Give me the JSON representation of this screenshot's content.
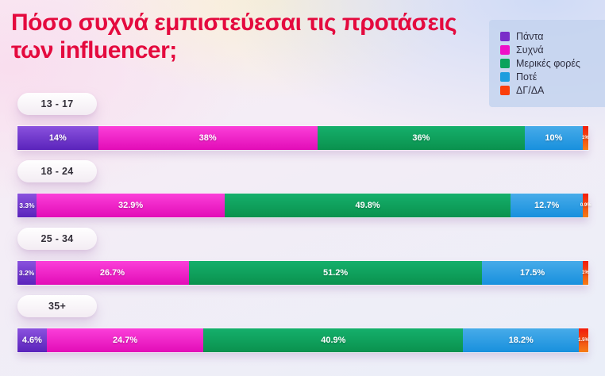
{
  "title": {
    "text": "Πόσο συχνά εμπιστεύεσαι τις προτάσεις των influencer;",
    "color": "#e40a3e"
  },
  "legend": {
    "items": [
      {
        "label": "Πάντα",
        "color": "#7a2dc9",
        "bar_gradient": [
          "#8a52de",
          "#5a23bb"
        ]
      },
      {
        "label": "Συχνά",
        "color": "#ef0fc8",
        "bar_gradient": [
          "#fb3fd9",
          "#e20cb7"
        ]
      },
      {
        "label": "Μερικές φορές",
        "color": "#09a35c",
        "bar_gradient": [
          "#15b06c",
          "#0a914e"
        ]
      },
      {
        "label": "Ποτέ",
        "color": "#1d9dde",
        "bar_gradient": [
          "#47abe9",
          "#1890dd"
        ]
      },
      {
        "label": "ΔΓ/ΔΑ",
        "color": "#fb3e0b",
        "bar_gradient": [
          "#f11c0c",
          "#f57d17"
        ]
      }
    ]
  },
  "rows": [
    {
      "age": "13 - 17",
      "labels": [
        "14%",
        "38%",
        "36%",
        "10%",
        "1%"
      ],
      "values": [
        14,
        38,
        36,
        10,
        1
      ]
    },
    {
      "age": "18 - 24",
      "labels": [
        "3.3%",
        "32.9%",
        "49.8%",
        "12.7%",
        "0.9%"
      ],
      "values": [
        3.3,
        32.9,
        49.8,
        12.7,
        0.9
      ]
    },
    {
      "age": "25 - 34",
      "labels": [
        "3.2%",
        "26.7%",
        "51.2%",
        "17.5%",
        "1%"
      ],
      "values": [
        3.2,
        26.7,
        51.2,
        17.5,
        1
      ]
    },
    {
      "age": "35+",
      "labels": [
        "4.6%",
        "24.7%",
        "40.9%",
        "18.2%",
        "1.5%"
      ],
      "values": [
        4.6,
        24.7,
        40.9,
        18.2,
        1.5
      ]
    }
  ],
  "chart_data": {
    "type": "bar",
    "orientation": "horizontal-stacked",
    "title": "Πόσο συχνά εμπιστεύεσαι τις προτάσεις των influencer;",
    "categories": [
      "13 - 17",
      "18 - 24",
      "25 - 34",
      "35+"
    ],
    "series": [
      {
        "name": "Πάντα",
        "values": [
          14,
          3.3,
          3.2,
          4.6
        ]
      },
      {
        "name": "Συχνά",
        "values": [
          38,
          32.9,
          26.7,
          24.7
        ]
      },
      {
        "name": "Μερικές φορές",
        "values": [
          36,
          49.8,
          51.2,
          40.9
        ]
      },
      {
        "name": "Ποτέ",
        "values": [
          10,
          12.7,
          17.5,
          18.2
        ]
      },
      {
        "name": "ΔΓ/ΔΑ",
        "values": [
          1,
          0.9,
          1,
          1.5
        ]
      }
    ],
    "unit": "%",
    "xlim": [
      0,
      100
    ],
    "grid": false,
    "legend_position": "top-right"
  }
}
